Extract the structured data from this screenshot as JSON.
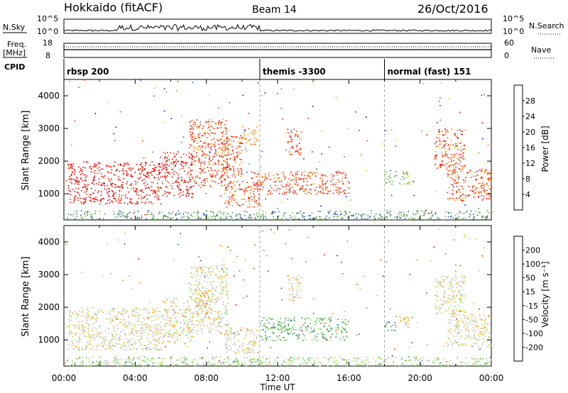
{
  "header": {
    "title": "Hokkaido (fitACF)",
    "beam": "Beam 14",
    "date": "26/Oct/2016"
  },
  "top_strip": {
    "nsky_label": "N.Sky",
    "nsky_ticks": [
      "10^5",
      "10^0"
    ],
    "nsearch_label": "N.Search",
    "nsearch_ticks": [
      "10^5",
      "10^0"
    ],
    "freq_label": "Freq.",
    "freq_unit": "[MHz]",
    "freq_ticks": [
      "18",
      "8"
    ],
    "nave_label": "Nave",
    "nave_ticks": [
      "60",
      "0"
    ],
    "cpid_label": "CPID",
    "cpid_segments": [
      {
        "label": "rbsp 200",
        "start_hour": 0
      },
      {
        "label": "themis -3300",
        "start_hour": 11
      },
      {
        "label": "normal (fast) 151",
        "start_hour": 18
      }
    ]
  },
  "chart_data": [
    {
      "type": "heatmap",
      "name": "power-panel",
      "ylabel": "Slant Range [km]",
      "yticks": [
        "1000",
        "2000",
        "3000",
        "4000"
      ],
      "ylim": [
        200,
        4500
      ],
      "xlim": [
        0,
        24
      ],
      "colorbar_label": "Power [dB]",
      "colorbar_ticks": [
        "4",
        "8",
        "12",
        "16",
        "20",
        "24",
        "28"
      ],
      "colorbar_colors": [
        "#0000ff",
        "#2a4ea6",
        "#3f8f5a",
        "#6fbf3f",
        "#f0d000",
        "#ff9000",
        "#ff3000",
        "#ee0000"
      ],
      "regions": [
        {
          "t0": 0.2,
          "t1": 5.5,
          "r0": 700,
          "r1": 2000,
          "level": 7
        },
        {
          "t0": 5.5,
          "t1": 7.2,
          "r0": 900,
          "r1": 2300,
          "level": 7
        },
        {
          "t0": 7.0,
          "t1": 9.2,
          "r0": 1200,
          "r1": 3300,
          "level": 6
        },
        {
          "t0": 8.8,
          "t1": 10.0,
          "r0": 1500,
          "r1": 2800,
          "level": 6
        },
        {
          "t0": 10.0,
          "t1": 10.8,
          "r0": 2500,
          "r1": 3100,
          "level": 5
        },
        {
          "t0": 9.0,
          "t1": 11.0,
          "r0": 600,
          "r1": 1400,
          "level": 6
        },
        {
          "t0": 10.5,
          "t1": 16.0,
          "r0": 1000,
          "r1": 1700,
          "level": 6
        },
        {
          "t0": 12.5,
          "t1": 13.3,
          "r0": 2200,
          "r1": 3000,
          "level": 6
        },
        {
          "t0": 18.0,
          "t1": 19.4,
          "r0": 1300,
          "r1": 1700,
          "level": 3
        },
        {
          "t0": 20.8,
          "t1": 22.5,
          "r0": 1800,
          "r1": 3000,
          "level": 6
        },
        {
          "t0": 21.5,
          "t1": 24.0,
          "r0": 800,
          "r1": 1800,
          "level": 6
        },
        {
          "t0": 0.0,
          "t1": 24.0,
          "r0": 200,
          "r1": 500,
          "level": 2
        }
      ]
    },
    {
      "type": "heatmap",
      "name": "velocity-panel",
      "ylabel": "Slant Range [km]",
      "yticks": [
        "1000",
        "2000",
        "3000",
        "4000"
      ],
      "ylim": [
        200,
        4500
      ],
      "xlim": [
        0,
        24
      ],
      "xticks": [
        "00:00",
        "04:00",
        "08:00",
        "12:00",
        "16:00",
        "20:00",
        "00:00"
      ],
      "xlabel": "Time UT",
      "colorbar_label": "Velocity [m s⁻¹]",
      "colorbar_ticks": [
        "-200",
        "-100",
        "-50",
        "-15",
        "15",
        "50",
        "100",
        "200"
      ],
      "colorbar_colors": [
        "#ee0000",
        "#ff4000",
        "#ff8000",
        "#ffb000",
        "#bebebe",
        "#9adf50",
        "#40b040",
        "#2a8a6a",
        "#1a3aa0"
      ],
      "regions": [
        {
          "t0": 0.2,
          "t1": 5.5,
          "r0": 700,
          "r1": 2000,
          "level": 4
        },
        {
          "t0": 5.5,
          "t1": 7.2,
          "r0": 900,
          "r1": 2300,
          "level": 4
        },
        {
          "t0": 7.0,
          "t1": 9.2,
          "r0": 1200,
          "r1": 3300,
          "level": 4
        },
        {
          "t0": 7.4,
          "t1": 8.2,
          "r0": 1800,
          "r1": 2600,
          "level": 3
        },
        {
          "t0": 9.0,
          "t1": 11.0,
          "r0": 600,
          "r1": 1400,
          "level": 4
        },
        {
          "t0": 11.0,
          "t1": 16.0,
          "r0": 1000,
          "r1": 1700,
          "level": 6
        },
        {
          "t0": 12.5,
          "t1": 13.3,
          "r0": 2200,
          "r1": 3000,
          "level": 4
        },
        {
          "t0": 18.0,
          "t1": 18.6,
          "r0": 1300,
          "r1": 1600,
          "level": 7
        },
        {
          "t0": 18.6,
          "t1": 19.4,
          "r0": 1400,
          "r1": 1800,
          "level": 3
        },
        {
          "t0": 20.8,
          "t1": 22.5,
          "r0": 1800,
          "r1": 3000,
          "level": 4
        },
        {
          "t0": 21.5,
          "t1": 24.0,
          "r0": 800,
          "r1": 1800,
          "level": 4
        },
        {
          "t0": 0.0,
          "t1": 24.0,
          "r0": 200,
          "r1": 500,
          "level": 5
        }
      ]
    }
  ]
}
